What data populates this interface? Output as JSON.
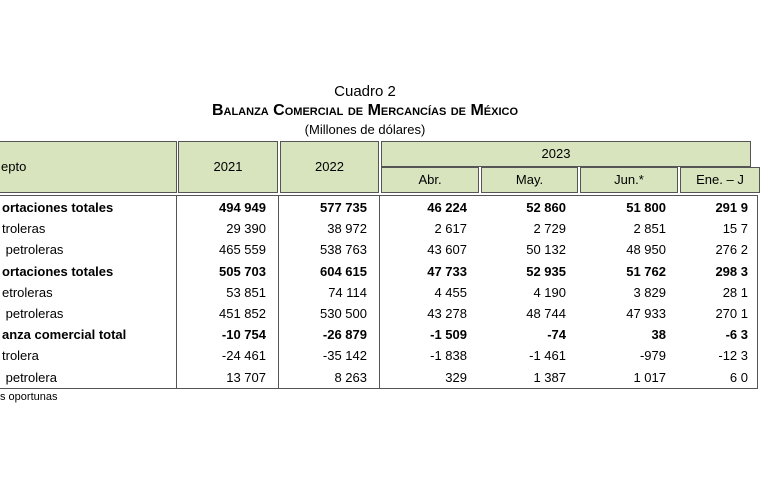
{
  "header": {
    "label": "Cuadro 2",
    "title": "Balanza Comercial de Mercancías de México",
    "subtitle": "(Millones de dólares)"
  },
  "table": {
    "concept_header": "epto",
    "years": [
      "2021",
      "2022",
      "2023"
    ],
    "months": [
      "Abr.",
      "May.",
      "Jun.*",
      "Ene. – J"
    ],
    "rows": [
      [
        "ortaciones totales",
        "494 949",
        "577 735",
        "46 224",
        "52 860",
        "51 800",
        "291 9"
      ],
      [
        "troleras",
        "29 390",
        "38 972",
        "2 617",
        "2 729",
        "2 851",
        "15 7"
      ],
      [
        " petroleras",
        "465 559",
        "538 763",
        "43 607",
        "50 132",
        "48 950",
        "276 2"
      ],
      [
        "ortaciones totales",
        "505 703",
        "604 615",
        "47 733",
        "52 935",
        "51 762",
        "298 3"
      ],
      [
        "etroleras",
        "53 851",
        "74 114",
        "4 455",
        "4 190",
        "3 829",
        "28 1"
      ],
      [
        " petroleras",
        "451 852",
        "530 500",
        "43 278",
        "48 744",
        "47 933",
        "270 1"
      ],
      [
        "anza comercial total",
        "-10 754",
        "-26 879",
        "-1 509",
        "-74",
        "38",
        "-6 3"
      ],
      [
        "trolera",
        "-24 461",
        "-35 142",
        "-1 838",
        "-1 461",
        "-979",
        "-12 3"
      ],
      [
        " petrolera",
        "13 707",
        "8 263",
        "329",
        "1 387",
        "1 017",
        "6 0"
      ]
    ],
    "bold_rows": [
      0,
      3,
      6
    ]
  },
  "footnote": "s oportunas"
}
